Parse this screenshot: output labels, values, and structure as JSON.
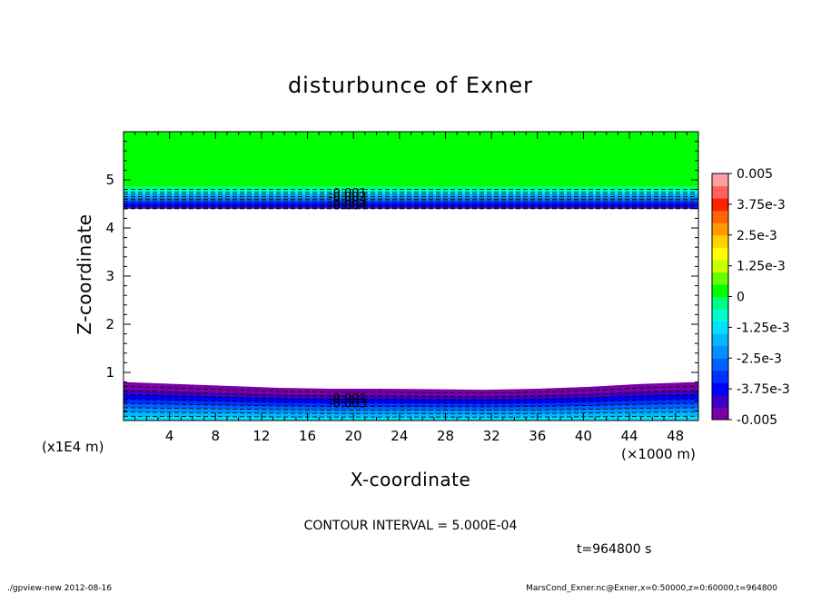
{
  "chart_data": {
    "type": "contour",
    "title": "disturbunce of Exner",
    "xlabel": "X-coordinate",
    "ylabel": "Z-coordinate",
    "x_unit": "(×1000 m)",
    "y_unit": "(x1E4 m)",
    "xlim": [
      0,
      50
    ],
    "ylim": [
      0,
      6
    ],
    "x_ticks": [
      4,
      8,
      12,
      16,
      20,
      24,
      28,
      32,
      36,
      40,
      44,
      48
    ],
    "y_ticks": [
      1,
      2,
      3,
      4,
      5
    ],
    "contour_interval_text": "CONTOUR INTERVAL = 5.000E-04",
    "time_text": "t=964800 s",
    "contour_labels": [
      "-0.001",
      "-0.002",
      "-0.003",
      "-0.004",
      "-0.001",
      "-0.003"
    ],
    "colorbar": {
      "range": [
        -0.005,
        0.005
      ],
      "tick_labels": [
        "0.005",
        "3.75e-3",
        "2.5e-3",
        "1.25e-3",
        "0",
        "-1.25e-3",
        "-2.5e-3",
        "-3.75e-3",
        "-0.005"
      ],
      "colors": [
        "#7a00a8",
        "#3a00c8",
        "#0000ff",
        "#0030ff",
        "#0060ff",
        "#0090ff",
        "#00b8ff",
        "#00e0ff",
        "#00ffc8",
        "#00ff80",
        "#00ff00",
        "#66ff00",
        "#ccff00",
        "#ffff00",
        "#ffd000",
        "#ff9900",
        "#ff6600",
        "#ff2000",
        "#ff6060",
        "#ffa0a0"
      ]
    },
    "regions": {
      "upper_band_z": [
        4.4,
        6.0
      ],
      "upper_band_z_by_value": [
        {
          "value": 0,
          "z_bottom": 4.86
        },
        {
          "value": -0.0005,
          "z_bottom": 4.8
        },
        {
          "value": -0.001,
          "z_bottom": 4.74
        },
        {
          "value": -0.0015,
          "z_bottom": 4.7
        },
        {
          "value": -0.002,
          "z_bottom": 4.65
        },
        {
          "value": -0.0025,
          "z_bottom": 4.6
        },
        {
          "value": -0.003,
          "z_bottom": 4.55
        },
        {
          "value": -0.0035,
          "z_bottom": 4.5
        },
        {
          "value": -0.004,
          "z_bottom": 4.44
        },
        {
          "value": -0.0045,
          "z_bottom": 4.4
        }
      ],
      "lower_band_top_z": [
        0.8,
        0.76,
        0.72,
        0.68,
        0.66,
        0.66,
        0.65,
        0.64,
        0.66,
        0.7,
        0.76,
        0.8
      ],
      "lower_band_x": [
        0,
        4.5,
        9,
        13.5,
        18,
        22.5,
        27,
        31.5,
        36,
        40.5,
        45,
        50
      ]
    },
    "grid": false,
    "legend_placement": "right"
  },
  "footer": {
    "left": "./gpview-new   2012-08-16",
    "right": "MarsCond_Exner.nc@Exner,x=0:50000,z=0:60000,t=964800"
  }
}
